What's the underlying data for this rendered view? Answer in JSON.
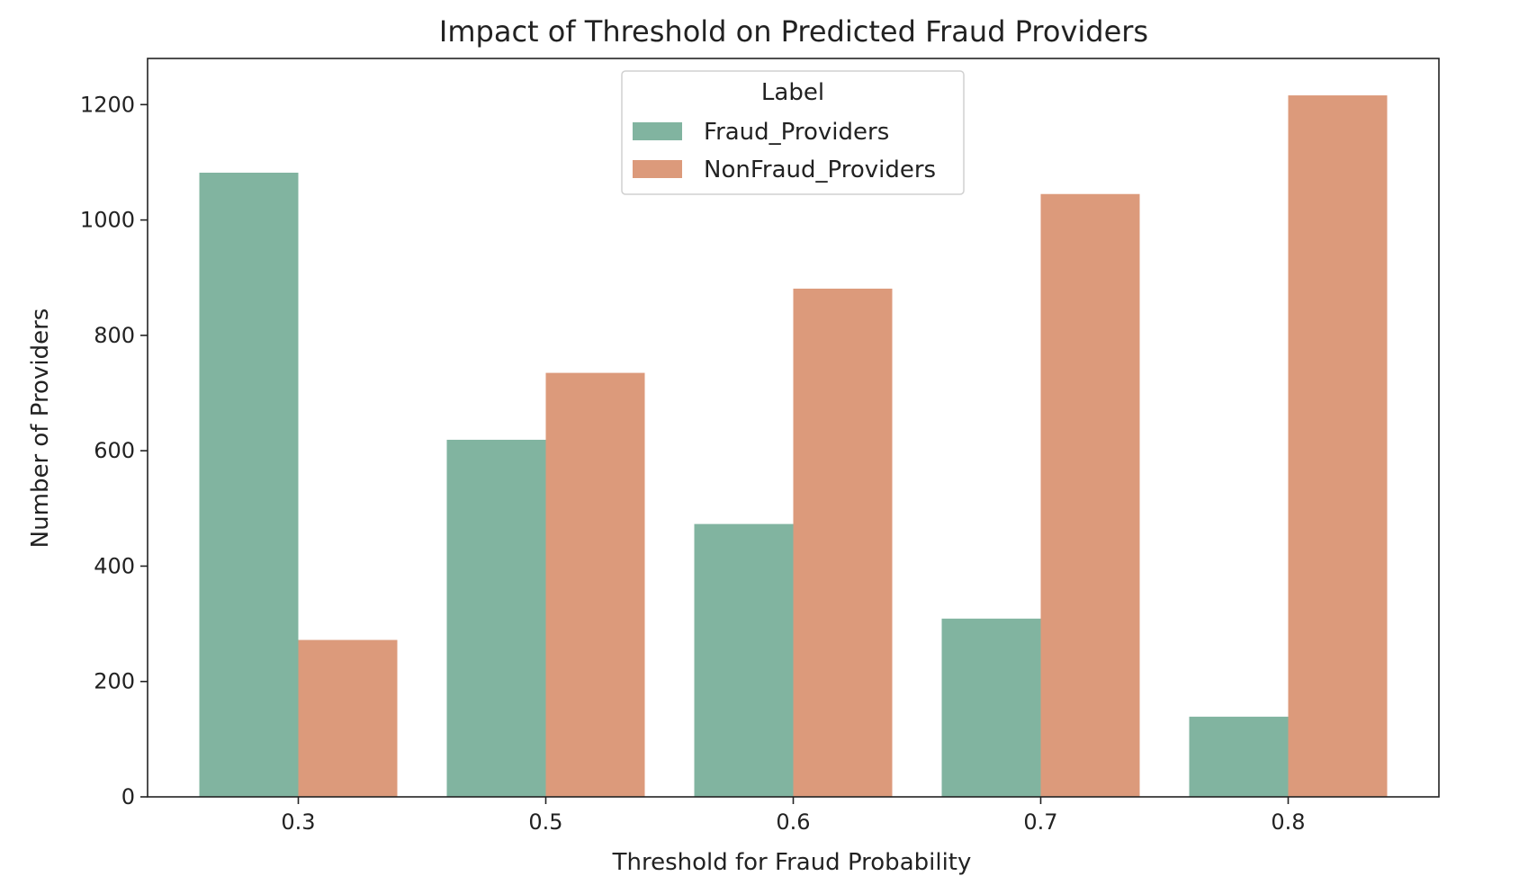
{
  "chart_data": {
    "type": "bar",
    "title": "Impact of Threshold on Predicted Fraud Providers",
    "xlabel": "Threshold for Fraud Probability",
    "ylabel": "Number of Providers",
    "categories": [
      "0.3",
      "0.5",
      "0.6",
      "0.7",
      "0.8"
    ],
    "series": [
      {
        "name": "Fraud_Providers",
        "color": "#81b4a0",
        "values": [
          1082,
          619,
          473,
          309,
          139
        ]
      },
      {
        "name": "NonFraud_Providers",
        "color": "#dc9a7b",
        "values": [
          272,
          735,
          881,
          1045,
          1216
        ]
      }
    ],
    "ylim": [
      0,
      1280
    ],
    "yticks": [
      0,
      200,
      400,
      600,
      800,
      1000,
      1200
    ],
    "grid": false,
    "legend": {
      "title": "Label",
      "placement": "top-center"
    }
  }
}
